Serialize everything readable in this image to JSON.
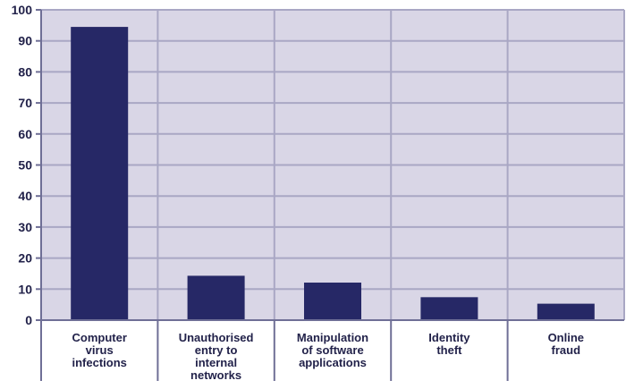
{
  "chart_data": {
    "type": "bar",
    "title": "",
    "xlabel": "",
    "ylabel": "",
    "ylim": [
      0,
      100
    ],
    "yticks": [
      0,
      10,
      20,
      30,
      40,
      50,
      60,
      70,
      80,
      90,
      100
    ],
    "grid": true,
    "categories": [
      [
        "Computer",
        "virus",
        "infections"
      ],
      [
        "Unauthorised",
        "entry to",
        "internal",
        "networks"
      ],
      [
        "Manipulation",
        "of software",
        "applications"
      ],
      [
        "Identity",
        "theft"
      ],
      [
        "Online",
        "fraud"
      ]
    ],
    "values": [
      94.5,
      14.3,
      12.1,
      7.4,
      5.3
    ]
  },
  "colors": {
    "plot_background": "#d9d6e6",
    "grid": "#a9a7c4",
    "bar": "#262866",
    "axis": "#6f6f96",
    "text": "#22224a"
  }
}
